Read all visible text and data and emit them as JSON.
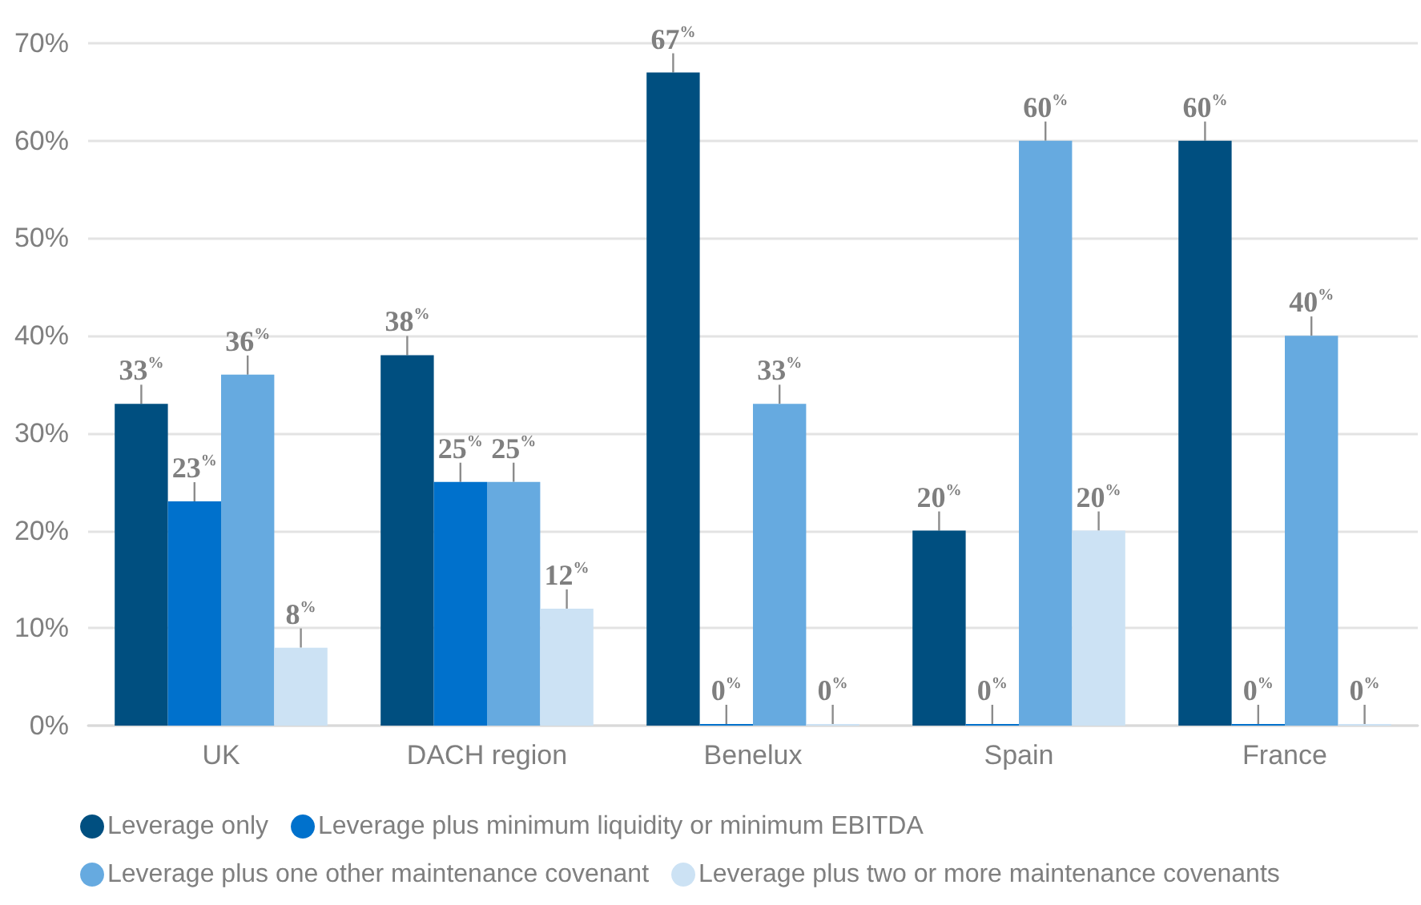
{
  "chart_data": {
    "type": "bar",
    "categories": [
      "UK",
      "DACH region",
      "Benelux",
      "Spain",
      "France"
    ],
    "series": [
      {
        "name": "Leverage only",
        "color": "#004f80",
        "values": [
          33,
          38,
          67,
          20,
          60
        ],
        "value_labels": [
          "33$^{%}$",
          "38$^{%}$",
          "67$^{%}$",
          "20$^{%}$",
          "60$^{%}$"
        ]
      },
      {
        "name": "Leverage plus minimum liquidity or minimum EBITDA",
        "color": "#0071cc",
        "values": [
          23,
          25,
          0,
          0,
          0
        ],
        "value_labels": [
          "23$^{%}$",
          "25$^{%}$",
          "0$^{%}$",
          "0$^{%}$",
          "0$^{%}$"
        ]
      },
      {
        "name": "Leverage plus one other maintenance covenant",
        "color": "#66aae0",
        "values": [
          36,
          25,
          33,
          60,
          40
        ],
        "value_labels": [
          "36$^{%}$",
          "25$^{%}$",
          "33$^{%}$",
          "60$^{%}$",
          "40$^{%}$"
        ]
      },
      {
        "name": "Leverage plus two or more maintenance covenants",
        "color": "#cce2f4",
        "values": [
          8,
          12,
          0,
          20,
          0
        ],
        "value_labels": [
          "8$^{%}$",
          "12$^{%}$",
          "0$^{%}$",
          "20$^{%}$",
          "0$^{%}$"
        ]
      }
    ],
    "ylim": [
      0,
      70
    ],
    "yticks": [
      {
        "value": 0,
        "label": "0%"
      },
      {
        "value": 10,
        "label": "10%"
      },
      {
        "value": 20,
        "label": "20%"
      },
      {
        "value": 30,
        "label": "30%"
      },
      {
        "value": 40,
        "label": "40%"
      },
      {
        "value": 50,
        "label": "50%"
      },
      {
        "value": 60,
        "label": "60%"
      },
      {
        "value": 70,
        "label": "70%"
      }
    ],
    "grid": "y",
    "legend": "bottom"
  }
}
